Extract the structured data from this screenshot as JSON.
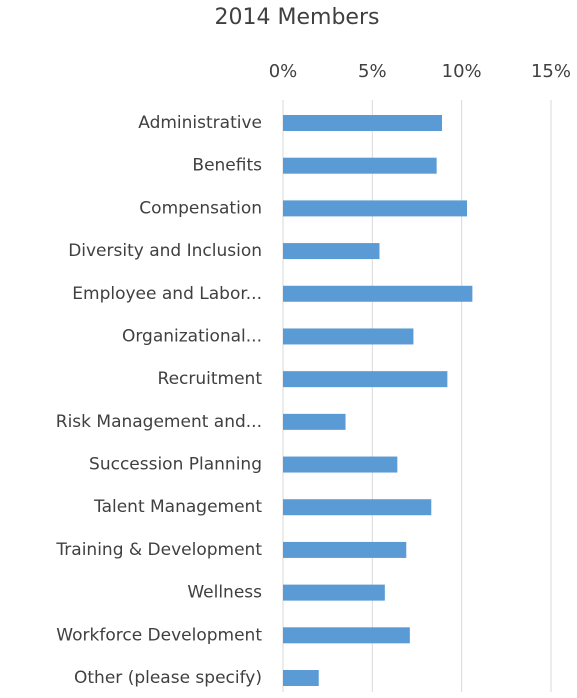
{
  "chart_data": {
    "type": "bar",
    "orientation": "horizontal",
    "title": "2014 Members",
    "categories": [
      "Administrative",
      "Benefits",
      "Compensation",
      "Diversity and Inclusion",
      "Employee and Labor...",
      "Organizational...",
      "Recruitment",
      "Risk Management and...",
      "Succession Planning",
      "Talent Management",
      "Training & Development",
      "Wellness",
      "Workforce Development",
      "Other (please specify)"
    ],
    "values": [
      8.9,
      8.6,
      10.3,
      5.4,
      10.6,
      7.3,
      9.2,
      3.5,
      6.4,
      8.3,
      6.9,
      5.7,
      7.1,
      2.0
    ],
    "color": "#5b9bd5",
    "xlim": [
      0,
      15
    ],
    "xticks": [
      {
        "value": 0,
        "label": "0%"
      },
      {
        "value": 5,
        "label": "5%"
      },
      {
        "value": 10,
        "label": "10%"
      },
      {
        "value": 15,
        "label": "15%"
      }
    ],
    "grid": true
  }
}
